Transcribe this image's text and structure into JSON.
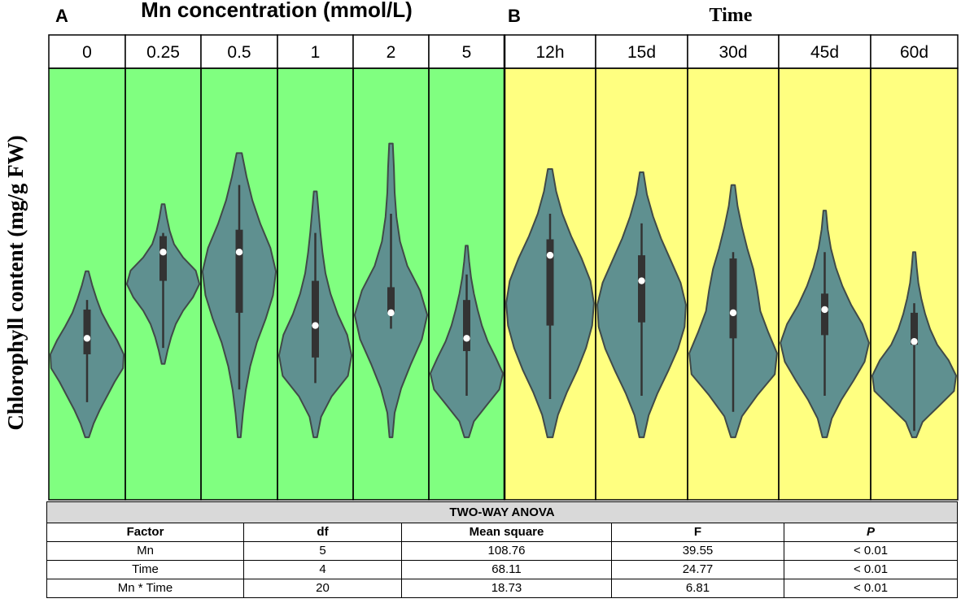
{
  "panels": {
    "a": {
      "letter": "A",
      "title": "Mn concentration (mmol/L)"
    },
    "b": {
      "letter": "B",
      "title": "Time"
    }
  },
  "ylabel": "Chlorophyll content (mg/g FW)",
  "colors": {
    "panel_a_bg": "#80ff80",
    "panel_b_bg": "#ffff80",
    "violin_fill": "#5f9090",
    "violin_stroke": "#404a48",
    "box": "#333333",
    "median": "#ffffff"
  },
  "chart_data": {
    "type": "violin",
    "ylabel": "Chlorophyll content (mg/g FW)",
    "ylim": [
      0,
      1
    ],
    "panels": [
      {
        "id": "A",
        "title": "Mn concentration (mmol/L)",
        "categories": [
          "0",
          "0.25",
          "0.5",
          "1",
          "2",
          "5"
        ],
        "groups": [
          {
            "min": 0.13,
            "q1": 0.28,
            "median": 0.33,
            "q3": 0.42,
            "max": 0.45,
            "vmin": 0.02,
            "vmax": 0.54,
            "density": [
              0.05,
              0.18,
              0.35,
              0.55,
              0.75,
              0.98,
              1.0,
              0.82,
              0.6,
              0.4,
              0.26,
              0.14,
              0.04
            ]
          },
          {
            "min": 0.3,
            "q1": 0.51,
            "median": 0.6,
            "q3": 0.65,
            "max": 0.66,
            "vmin": 0.25,
            "vmax": 0.75,
            "density": [
              0.04,
              0.12,
              0.22,
              0.35,
              0.55,
              0.82,
              1.0,
              0.9,
              0.55,
              0.3,
              0.18,
              0.1,
              0.04
            ]
          },
          {
            "min": 0.17,
            "q1": 0.41,
            "median": 0.6,
            "q3": 0.67,
            "max": 0.81,
            "vmin": 0.02,
            "vmax": 0.91,
            "density": [
              0.04,
              0.1,
              0.18,
              0.3,
              0.48,
              0.72,
              0.92,
              1.0,
              0.85,
              0.58,
              0.36,
              0.2,
              0.07
            ]
          },
          {
            "min": 0.19,
            "q1": 0.27,
            "median": 0.37,
            "q3": 0.51,
            "max": 0.66,
            "vmin": 0.02,
            "vmax": 0.79,
            "density": [
              0.05,
              0.16,
              0.45,
              0.9,
              1.0,
              0.88,
              0.62,
              0.42,
              0.28,
              0.2,
              0.14,
              0.09,
              0.04
            ]
          },
          {
            "min": 0.36,
            "q1": 0.41,
            "median": 0.41,
            "q3": 0.49,
            "max": 0.72,
            "vmin": 0.02,
            "vmax": 0.94,
            "density": [
              0.04,
              0.1,
              0.28,
              0.55,
              0.85,
              1.0,
              0.8,
              0.45,
              0.25,
              0.15,
              0.1,
              0.08,
              0.05
            ]
          },
          {
            "min": 0.15,
            "q1": 0.29,
            "median": 0.33,
            "q3": 0.45,
            "max": 0.53,
            "vmin": 0.02,
            "vmax": 0.62,
            "density": [
              0.06,
              0.2,
              0.55,
              0.9,
              1.0,
              0.8,
              0.58,
              0.42,
              0.3,
              0.2,
              0.12,
              0.07,
              0.03
            ]
          }
        ]
      },
      {
        "id": "B",
        "title": "Time",
        "categories": [
          "12h",
          "15d",
          "30d",
          "45d",
          "60d"
        ],
        "groups": [
          {
            "min": 0.14,
            "q1": 0.37,
            "median": 0.59,
            "q3": 0.64,
            "max": 0.72,
            "vmin": 0.02,
            "vmax": 0.86,
            "density": [
              0.06,
              0.18,
              0.38,
              0.62,
              0.82,
              0.96,
              1.0,
              0.92,
              0.72,
              0.48,
              0.28,
              0.14,
              0.05
            ]
          },
          {
            "min": 0.15,
            "q1": 0.38,
            "median": 0.51,
            "q3": 0.59,
            "max": 0.69,
            "vmin": 0.02,
            "vmax": 0.85,
            "density": [
              0.05,
              0.16,
              0.36,
              0.6,
              0.82,
              0.97,
              1.0,
              0.88,
              0.66,
              0.44,
              0.26,
              0.12,
              0.04
            ]
          },
          {
            "min": 0.1,
            "q1": 0.33,
            "median": 0.41,
            "q3": 0.58,
            "max": 0.6,
            "vmin": 0.02,
            "vmax": 0.81,
            "density": [
              0.05,
              0.2,
              0.55,
              0.95,
              1.0,
              0.8,
              0.62,
              0.55,
              0.46,
              0.32,
              0.2,
              0.1,
              0.04
            ]
          },
          {
            "min": 0.15,
            "q1": 0.34,
            "median": 0.42,
            "q3": 0.47,
            "max": 0.6,
            "vmin": 0.02,
            "vmax": 0.73,
            "density": [
              0.05,
              0.16,
              0.38,
              0.65,
              0.9,
              1.0,
              0.85,
              0.6,
              0.4,
              0.25,
              0.14,
              0.07,
              0.03
            ]
          },
          {
            "min": 0.04,
            "q1": 0.31,
            "median": 0.32,
            "q3": 0.41,
            "max": 0.44,
            "vmin": 0.02,
            "vmax": 0.6,
            "density": [
              0.05,
              0.2,
              0.58,
              0.95,
              1.0,
              0.82,
              0.55,
              0.38,
              0.26,
              0.17,
              0.1,
              0.06,
              0.03
            ]
          }
        ]
      }
    ]
  },
  "anova": {
    "title": "TWO-WAY ANOVA",
    "headers": [
      "Factor",
      "df",
      "Mean square",
      "F",
      "P"
    ],
    "rows": [
      [
        "Mn",
        "5",
        "108.76",
        "39.55",
        "< 0.01"
      ],
      [
        "Time",
        "4",
        "68.11",
        "24.77",
        "< 0.01"
      ],
      [
        "Mn * Time",
        "20",
        "18.73",
        "6.81",
        "< 0.01"
      ]
    ]
  }
}
